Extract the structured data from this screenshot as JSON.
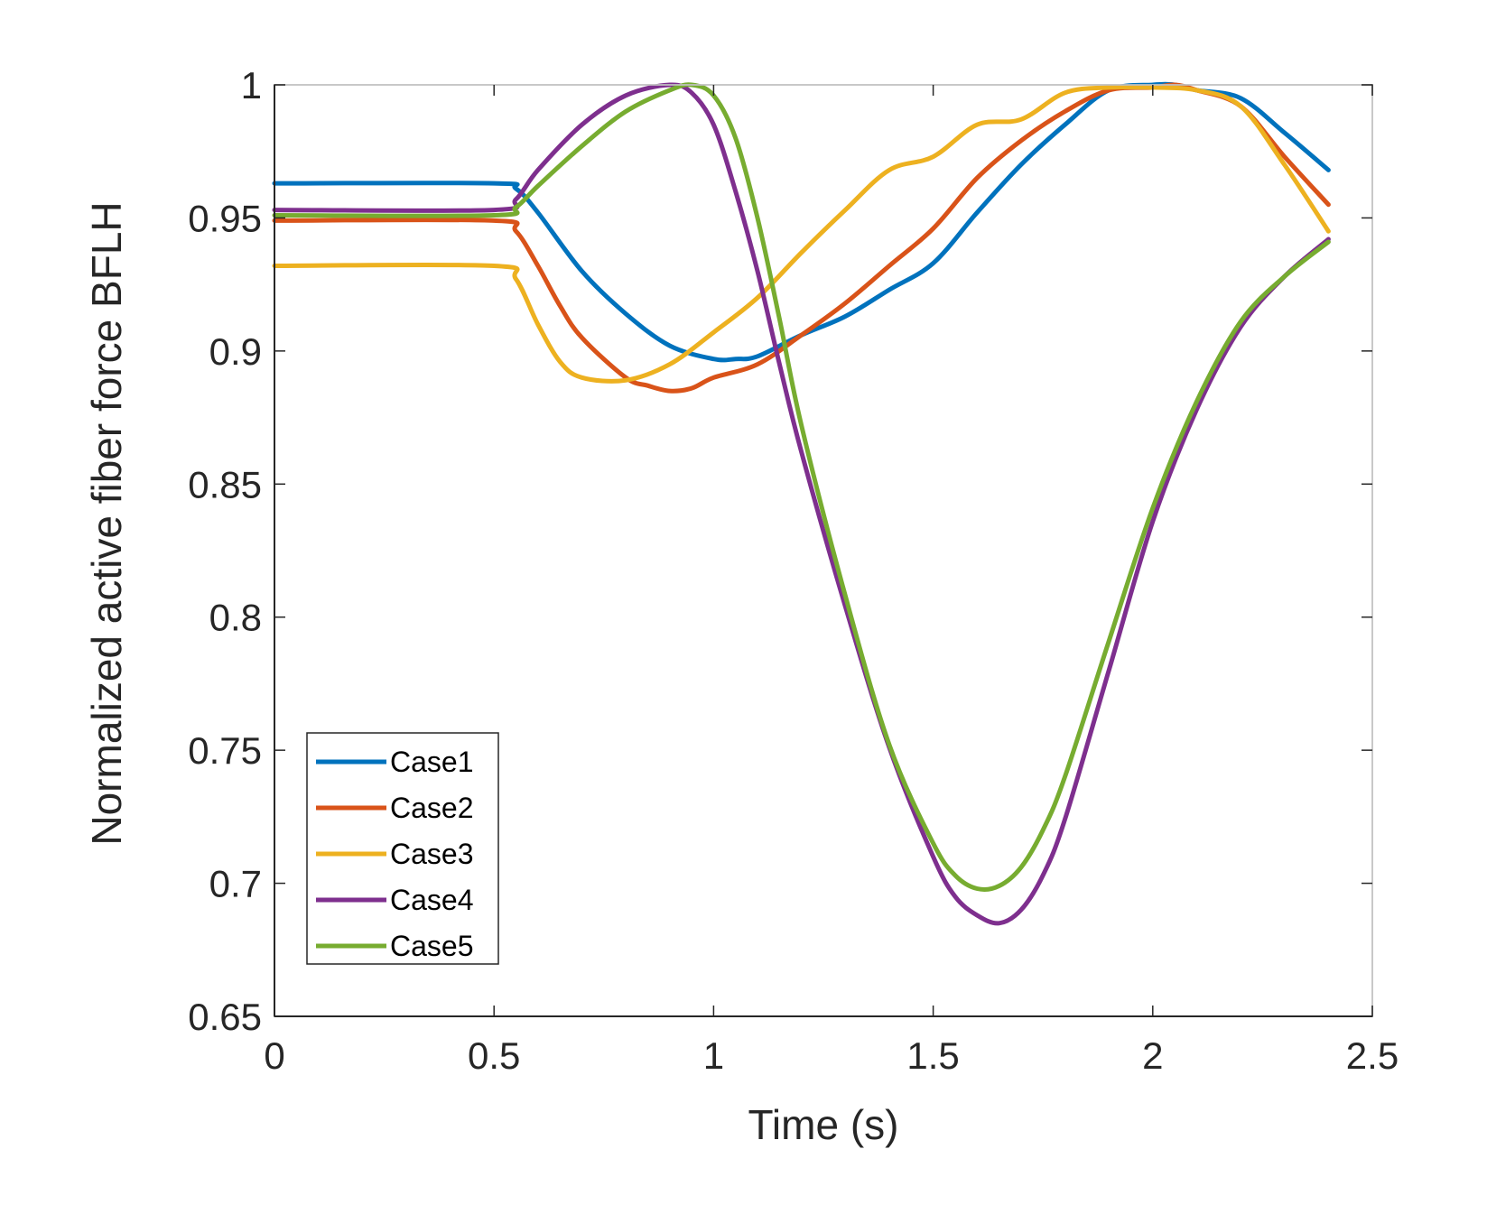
{
  "chart_data": {
    "type": "line",
    "title": "",
    "xlabel": "Time (s)",
    "ylabel": "Normalized active fiber force  BFLH",
    "xlim": [
      0,
      2.5
    ],
    "ylim": [
      0.65,
      1
    ],
    "xticks": [
      0,
      0.5,
      1,
      1.5,
      2,
      2.5
    ],
    "xtick_labels": [
      "0",
      "0.5",
      "1",
      "1.5",
      "2",
      "2.5"
    ],
    "yticks": [
      0.65,
      0.7,
      0.75,
      0.8,
      0.85,
      0.9,
      0.95,
      1
    ],
    "ytick_labels": [
      "0.65",
      "0.7",
      "0.75",
      "0.8",
      "0.85",
      "0.9",
      "0.95",
      "1"
    ],
    "grid": false,
    "legend_position": "bottom-left",
    "series": [
      {
        "name": "Case1",
        "color": "#0072BD",
        "x": [
          0,
          0.5,
          0.55,
          0.6,
          0.7,
          0.8,
          0.9,
          1.0,
          1.05,
          1.1,
          1.2,
          1.3,
          1.4,
          1.5,
          1.6,
          1.7,
          1.8,
          1.9,
          2.0,
          2.05,
          2.1,
          2.2,
          2.3,
          2.4
        ],
        "y": [
          0.963,
          0.963,
          0.961,
          0.952,
          0.93,
          0.914,
          0.902,
          0.897,
          0.897,
          0.898,
          0.906,
          0.913,
          0.923,
          0.933,
          0.952,
          0.97,
          0.985,
          0.998,
          1.0,
          1.0,
          0.998,
          0.995,
          0.982,
          0.968
        ]
      },
      {
        "name": "Case2",
        "color": "#D95319",
        "x": [
          0,
          0.5,
          0.55,
          0.6,
          0.65,
          0.7,
          0.8,
          0.85,
          0.9,
          0.95,
          1.0,
          1.1,
          1.2,
          1.3,
          1.4,
          1.5,
          1.6,
          1.7,
          1.8,
          1.9,
          2.0,
          2.05,
          2.1,
          2.2,
          2.3,
          2.4
        ],
        "y": [
          0.949,
          0.949,
          0.945,
          0.932,
          0.917,
          0.905,
          0.89,
          0.887,
          0.885,
          0.886,
          0.89,
          0.895,
          0.906,
          0.918,
          0.932,
          0.946,
          0.965,
          0.979,
          0.99,
          0.998,
          0.999,
          1.0,
          0.998,
          0.992,
          0.973,
          0.955
        ]
      },
      {
        "name": "Case3",
        "color": "#EDB120",
        "x": [
          0,
          0.5,
          0.55,
          0.6,
          0.65,
          0.7,
          0.8,
          0.9,
          1.0,
          1.1,
          1.2,
          1.3,
          1.4,
          1.5,
          1.6,
          1.7,
          1.8,
          1.9,
          2.0,
          2.1,
          2.2,
          2.3,
          2.4
        ],
        "y": [
          0.932,
          0.932,
          0.927,
          0.91,
          0.896,
          0.89,
          0.889,
          0.895,
          0.907,
          0.92,
          0.937,
          0.953,
          0.968,
          0.973,
          0.985,
          0.987,
          0.997,
          0.999,
          0.999,
          0.998,
          0.992,
          0.97,
          0.945
        ]
      },
      {
        "name": "Case4",
        "color": "#7E2F8E",
        "x": [
          0,
          0.5,
          0.55,
          0.6,
          0.7,
          0.8,
          0.9,
          0.95,
          1.0,
          1.05,
          1.1,
          1.15,
          1.2,
          1.3,
          1.4,
          1.5,
          1.55,
          1.6,
          1.65,
          1.7,
          1.75,
          1.8,
          1.9,
          2.0,
          2.1,
          2.2,
          2.3,
          2.4
        ],
        "y": [
          0.953,
          0.953,
          0.957,
          0.968,
          0.985,
          0.996,
          1.0,
          0.997,
          0.985,
          0.96,
          0.93,
          0.895,
          0.862,
          0.804,
          0.751,
          0.71,
          0.695,
          0.688,
          0.685,
          0.69,
          0.703,
          0.724,
          0.78,
          0.836,
          0.878,
          0.909,
          0.928,
          0.942
        ]
      },
      {
        "name": "Case5",
        "color": "#77AC30",
        "x": [
          0,
          0.5,
          0.55,
          0.6,
          0.7,
          0.8,
          0.9,
          0.95,
          1.0,
          1.05,
          1.1,
          1.15,
          1.2,
          1.3,
          1.4,
          1.5,
          1.55,
          1.6,
          1.65,
          1.7,
          1.75,
          1.8,
          1.9,
          2.0,
          2.1,
          2.2,
          2.3,
          2.4
        ],
        "y": [
          0.951,
          0.951,
          0.954,
          0.962,
          0.977,
          0.99,
          0.998,
          1.0,
          0.996,
          0.98,
          0.95,
          0.912,
          0.872,
          0.808,
          0.752,
          0.715,
          0.703,
          0.698,
          0.699,
          0.706,
          0.72,
          0.74,
          0.791,
          0.841,
          0.881,
          0.911,
          0.928,
          0.941
        ]
      }
    ]
  }
}
